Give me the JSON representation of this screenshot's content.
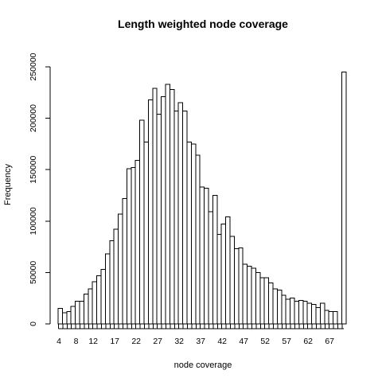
{
  "chart_data": {
    "type": "bar",
    "title": "Length weighted node coverage",
    "xlabel": "node coverage",
    "ylabel": "Frequency",
    "ylim": [
      0,
      250000
    ],
    "y_ticks": [
      0,
      50000,
      100000,
      150000,
      200000,
      250000
    ],
    "y_tick_labels": [
      "0",
      "50000",
      "100000",
      "150000",
      "200000",
      "250000"
    ],
    "x_tick_labels": [
      "4",
      "8",
      "12",
      "17",
      "22",
      "27",
      "32",
      "37",
      "42",
      "47",
      "52",
      "57",
      "62",
      "67"
    ],
    "x_tick_label_bins": [
      0,
      4,
      8,
      13,
      18,
      23,
      28,
      33,
      38,
      43,
      48,
      53,
      58,
      63
    ],
    "grid": false,
    "legend": "none",
    "bin_count": 67,
    "values": [
      15000,
      11000,
      12000,
      17000,
      22000,
      22000,
      29000,
      34000,
      41000,
      47000,
      53000,
      68000,
      81000,
      92000,
      107000,
      122000,
      151000,
      152000,
      159000,
      198000,
      177000,
      218000,
      229000,
      204000,
      221000,
      233000,
      228000,
      207000,
      215000,
      207000,
      177000,
      175000,
      164000,
      133000,
      132000,
      109000,
      125000,
      87000,
      97000,
      104000,
      85000,
      73000,
      74000,
      58000,
      56000,
      54000,
      50000,
      45000,
      45000,
      40000,
      34000,
      33000,
      28000,
      24000,
      25000,
      22000,
      23000,
      22000,
      20000,
      19000,
      16000,
      20000,
      13000,
      12000,
      12000,
      0,
      245000
    ],
    "colors": {
      "bar_fill": "#ffffff",
      "bar_stroke": "#000000",
      "background": "#ffffff"
    }
  }
}
